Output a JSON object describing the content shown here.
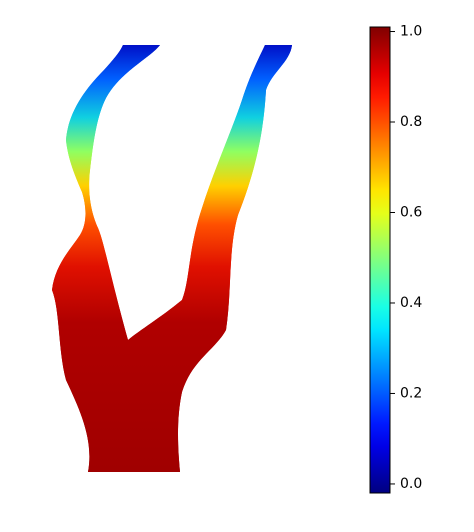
{
  "chart_data": {
    "type": "colorfield",
    "colormap": "jet",
    "ylim": [
      -0.02,
      1.01
    ],
    "yticks": [
      {
        "value": 0,
        "label": "0.0"
      },
      {
        "value": 0.2,
        "label": "0.2"
      },
      {
        "value": 0.4,
        "label": "0.4"
      },
      {
        "value": 0.6,
        "label": "0.6"
      },
      {
        "value": 0.8,
        "label": "0.8"
      },
      {
        "value": 1,
        "label": "1.0"
      }
    ]
  }
}
